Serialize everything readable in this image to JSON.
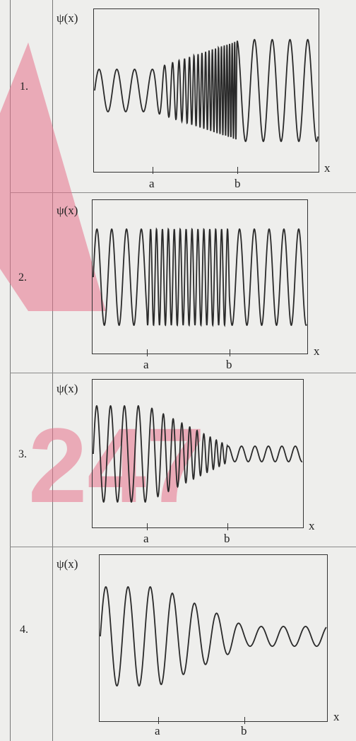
{
  "panels": [
    {
      "number": "1.",
      "ylabel": "ψ(x)",
      "xlabel": "x",
      "tick_a": "a",
      "tick_b": "b"
    },
    {
      "number": "2.",
      "ylabel": "ψ(x)",
      "xlabel": "x",
      "tick_a": "a",
      "tick_b": "b"
    },
    {
      "number": "3.",
      "ylabel": "ψ(x)",
      "xlabel": "x",
      "tick_a": "a",
      "tick_b": "b"
    },
    {
      "number": "4.",
      "ylabel": "ψ(x)",
      "xlabel": "x",
      "tick_a": "a",
      "tick_b": "b"
    }
  ],
  "watermark": {
    "text": "247",
    "color": "#e8738c"
  },
  "colors": {
    "curve": "#2a2a2a",
    "frame": "#333333",
    "background": "#eeeeec"
  }
}
